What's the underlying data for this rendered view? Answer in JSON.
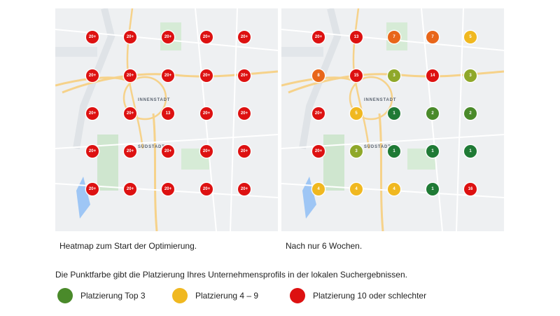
{
  "colors": {
    "top3": "#4a8a2a",
    "top3_dark": "#1f7a35",
    "mid": "#f0b820",
    "bad": "#dd1111",
    "orange": "#e8661a",
    "olive": "#8fa82a"
  },
  "maps": [
    {
      "id": "left",
      "caption": "Heatmap zum Start der Optimierung.",
      "labels": {
        "center": "INNENSTADT",
        "south": "SÜDSTADT"
      },
      "points": [
        [
          "20+",
          "bad"
        ],
        [
          "20+",
          "bad"
        ],
        [
          "20+",
          "bad"
        ],
        [
          "20+",
          "bad"
        ],
        [
          "20+",
          "bad"
        ],
        [
          "20+",
          "bad"
        ],
        [
          "20+",
          "bad"
        ],
        [
          "20+",
          "bad"
        ],
        [
          "20+",
          "bad"
        ],
        [
          "20+",
          "bad"
        ],
        [
          "20+",
          "bad"
        ],
        [
          "20+",
          "bad"
        ],
        [
          "13",
          "bad"
        ],
        [
          "20+",
          "bad"
        ],
        [
          "20+",
          "bad"
        ],
        [
          "20+",
          "bad"
        ],
        [
          "20+",
          "bad"
        ],
        [
          "20+",
          "bad"
        ],
        [
          "20+",
          "bad"
        ],
        [
          "20+",
          "bad"
        ],
        [
          "20+",
          "bad"
        ],
        [
          "20+",
          "bad"
        ],
        [
          "20+",
          "bad"
        ],
        [
          "20+",
          "bad"
        ],
        [
          "20+",
          "bad"
        ]
      ]
    },
    {
      "id": "right",
      "caption": "Nach nur 6 Wochen.",
      "labels": {
        "center": "INNENSTADT",
        "south": "SÜDSTADT"
      },
      "points": [
        [
          "20+",
          "bad"
        ],
        [
          "13",
          "bad"
        ],
        [
          "7",
          "orange"
        ],
        [
          "7",
          "orange"
        ],
        [
          "5",
          "mid"
        ],
        [
          "8",
          "orange"
        ],
        [
          "15",
          "bad"
        ],
        [
          "3",
          "olive"
        ],
        [
          "14",
          "bad"
        ],
        [
          "3",
          "olive"
        ],
        [
          "20+",
          "bad"
        ],
        [
          "5",
          "mid"
        ],
        [
          "1",
          "top3_dark"
        ],
        [
          "2",
          "top3"
        ],
        [
          "2",
          "top3"
        ],
        [
          "20+",
          "bad"
        ],
        [
          "3",
          "olive"
        ],
        [
          "1",
          "top3_dark"
        ],
        [
          "1",
          "top3_dark"
        ],
        [
          "1",
          "top3_dark"
        ],
        [
          "4",
          "mid"
        ],
        [
          "4",
          "mid"
        ],
        [
          "4",
          "mid"
        ],
        [
          "1",
          "top3_dark"
        ],
        [
          "16",
          "bad"
        ]
      ]
    }
  ],
  "note": "Die Punktfarbe gibt die Platzierung Ihres Unternehmensprofils in der lokalen Suchergebnissen.",
  "legend": [
    {
      "label": "Platzierung Top 3",
      "color": "top3"
    },
    {
      "label": "Platzierung 4 – 9",
      "color": "mid"
    },
    {
      "label": "Platzierung 10 oder schlechter",
      "color": "bad"
    }
  ]
}
